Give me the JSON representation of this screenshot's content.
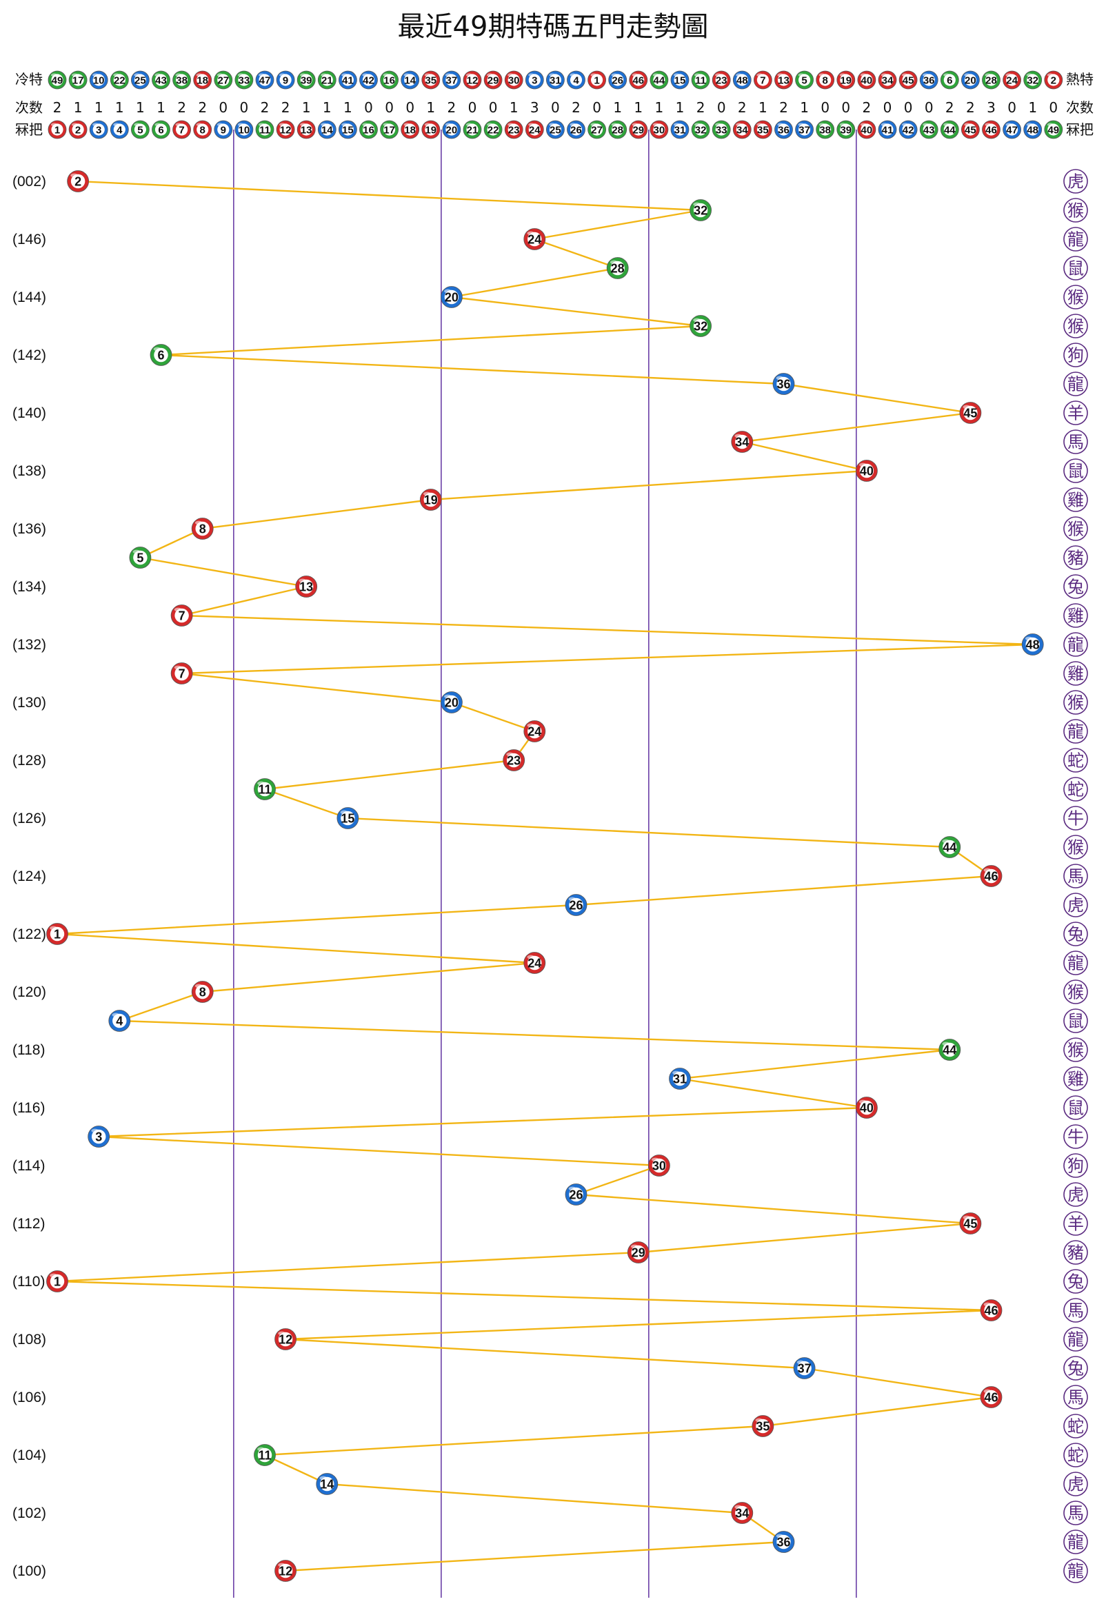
{
  "chart_data": {
    "type": "line",
    "title": "最近49期特碼五門走勢圖",
    "row_labels": {
      "cold_left": "冷特",
      "hot_right": "熱特",
      "count_left": "次数",
      "count_right": "次数",
      "num_left": "冧把",
      "num_right": "冧把"
    },
    "hot_cold_ranking": [
      49,
      17,
      10,
      22,
      25,
      43,
      38,
      18,
      27,
      33,
      47,
      9,
      39,
      21,
      41,
      42,
      16,
      14,
      35,
      37,
      12,
      29,
      30,
      3,
      31,
      4,
      1,
      26,
      46,
      44,
      15,
      11,
      23,
      48,
      7,
      13,
      5,
      8,
      19,
      40,
      34,
      45,
      36,
      6,
      20,
      28,
      24,
      32,
      2
    ],
    "occurrence_counts": [
      2,
      1,
      1,
      1,
      1,
      1,
      2,
      2,
      0,
      0,
      2,
      2,
      1,
      1,
      1,
      0,
      0,
      0,
      1,
      2,
      0,
      0,
      1,
      3,
      0,
      2,
      0,
      1,
      1,
      1,
      1,
      2,
      0,
      2,
      1,
      2,
      1,
      0,
      0,
      2,
      0,
      0,
      0,
      2,
      2,
      3,
      0,
      1,
      0
    ],
    "numbers": [
      1,
      2,
      3,
      4,
      5,
      6,
      7,
      8,
      9,
      10,
      11,
      12,
      13,
      14,
      15,
      16,
      17,
      18,
      19,
      20,
      21,
      22,
      23,
      24,
      25,
      26,
      27,
      28,
      29,
      30,
      31,
      32,
      33,
      34,
      35,
      36,
      37,
      38,
      39,
      40,
      41,
      42,
      43,
      44,
      45,
      46,
      47,
      48,
      49
    ],
    "period_labels": [
      "(002)",
      "(146)",
      "(144)",
      "(142)",
      "(140)",
      "(138)",
      "(136)",
      "(134)",
      "(132)",
      "(130)",
      "(128)",
      "(126)",
      "(124)",
      "(122)",
      "(120)",
      "(118)",
      "(116)",
      "(114)",
      "(112)",
      "(110)",
      "(108)",
      "(106)",
      "(104)",
      "(102)",
      "(100)"
    ],
    "series": [
      {
        "name": "特碼",
        "values": [
          2,
          32,
          24,
          28,
          20,
          32,
          6,
          36,
          45,
          34,
          40,
          19,
          8,
          5,
          13,
          7,
          48,
          7,
          20,
          24,
          23,
          11,
          15,
          44,
          46,
          26,
          1,
          24,
          8,
          4,
          44,
          31,
          40,
          3,
          30,
          26,
          45,
          29,
          1,
          46,
          12,
          37,
          46,
          35,
          11,
          14,
          34,
          36,
          12
        ]
      }
    ],
    "zodiacs": [
      "虎",
      "猴",
      "龍",
      "鼠",
      "猴",
      "猴",
      "狗",
      "龍",
      "羊",
      "馬",
      "鼠",
      "雞",
      "猴",
      "豬",
      "兔",
      "雞",
      "龍",
      "雞",
      "猴",
      "龍",
      "蛇",
      "蛇",
      "牛",
      "猴",
      "馬",
      "虎",
      "兔",
      "龍",
      "猴",
      "鼠",
      "猴",
      "雞",
      "鼠",
      "牛",
      "狗",
      "虎",
      "羊",
      "豬",
      "兔",
      "馬",
      "龍",
      "兔",
      "馬",
      "蛇",
      "蛇",
      "虎",
      "馬",
      "龍",
      "龍"
    ],
    "x_range": [
      1,
      49
    ],
    "zone_dividers_after": [
      9,
      19,
      29,
      39
    ],
    "colors": {
      "red": "#d42a2a",
      "blue": "#1f6fd0",
      "green": "#2fa33a",
      "line": "#f2b515",
      "divider": "#6a3ea6",
      "zodiac": "#5a2a80"
    },
    "red_numbers": [
      1,
      2,
      7,
      8,
      12,
      13,
      18,
      19,
      23,
      24,
      29,
      30,
      34,
      35,
      40,
      45,
      46
    ],
    "blue_numbers": [
      3,
      4,
      9,
      10,
      14,
      15,
      20,
      25,
      26,
      31,
      36,
      37,
      41,
      42,
      47,
      48
    ],
    "green_numbers": [
      5,
      6,
      11,
      16,
      17,
      21,
      22,
      27,
      28,
      32,
      33,
      38,
      39,
      43,
      44,
      49
    ]
  }
}
